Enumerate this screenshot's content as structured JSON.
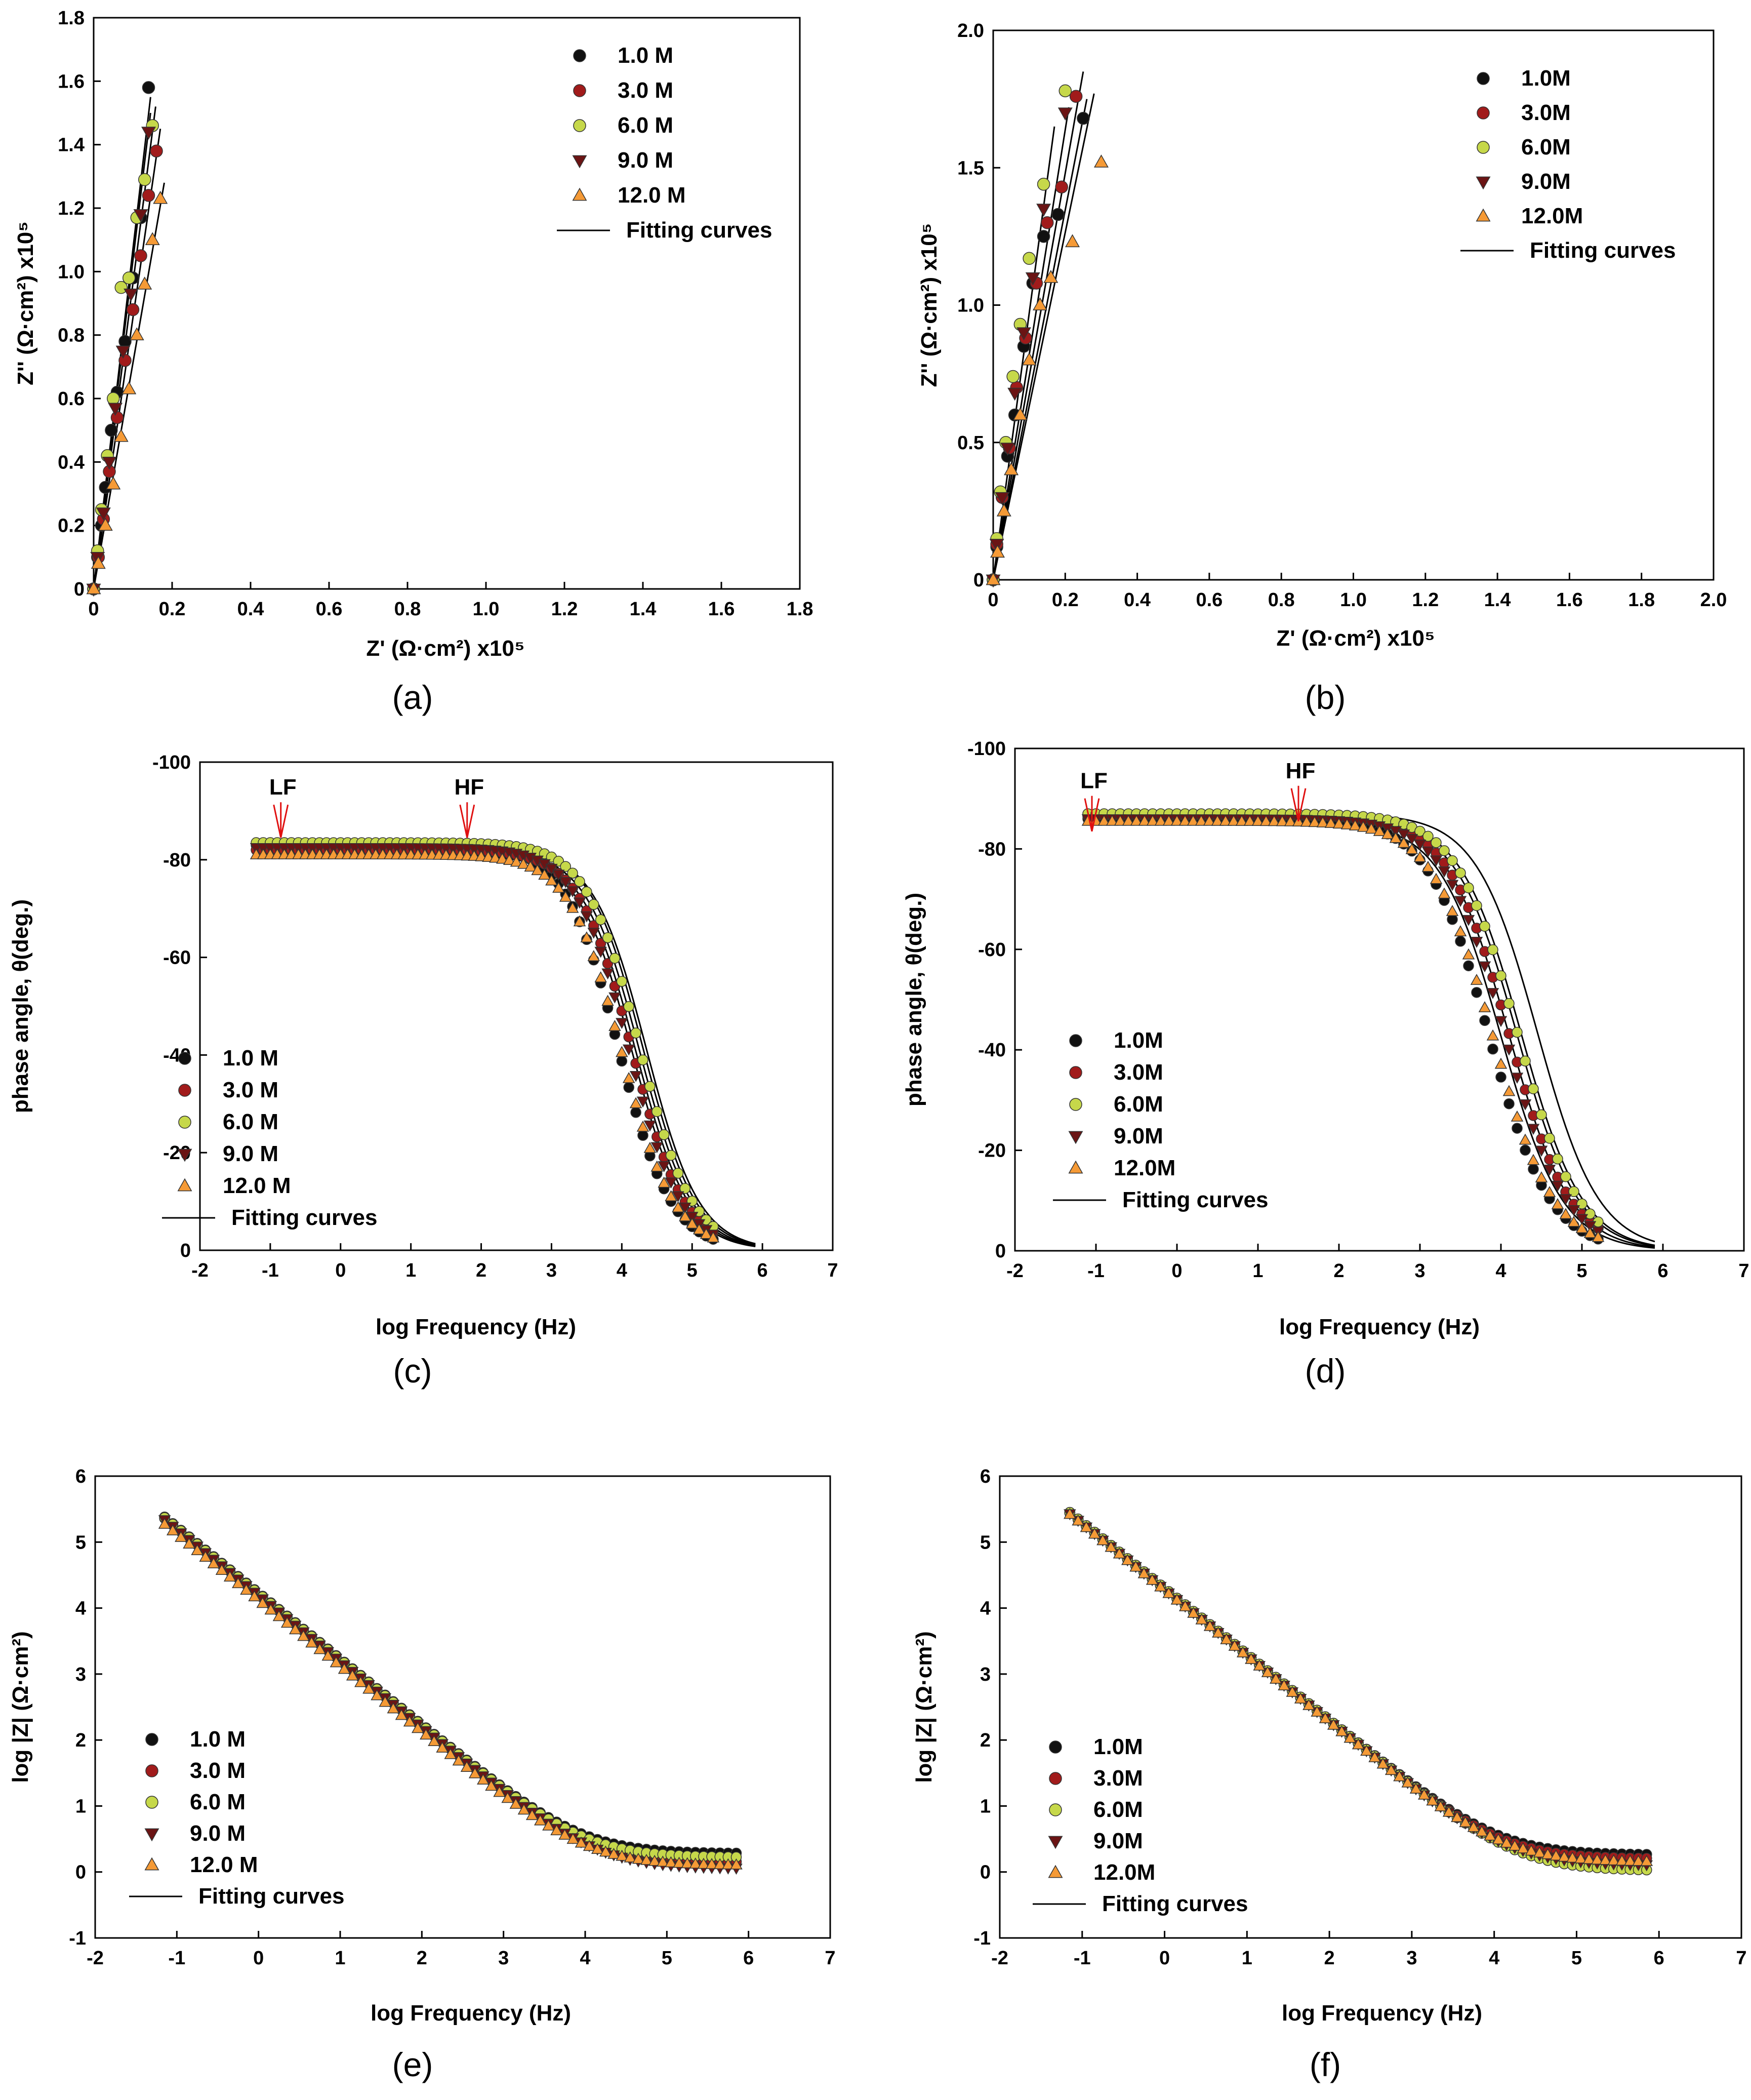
{
  "legend_series": [
    {
      "label": "1.0 M",
      "marker": "circle",
      "color": "#111111"
    },
    {
      "label": "3.0 M",
      "marker": "circle",
      "color": "#a11b1b"
    },
    {
      "label": "6.0 M",
      "marker": "circle",
      "color": "#c6d84a"
    },
    {
      "label": "9.0 M",
      "marker": "triangle-down",
      "color": "#6b1414"
    },
    {
      "label": "12.0 M",
      "marker": "triangle-up",
      "color": "#f59a36"
    }
  ],
  "chart_data": [
    {
      "id": "a",
      "type": "scatter",
      "caption": "(a)",
      "xlabel": "Z' (Ω·cm²) x10⁵",
      "ylabel": "Z'' (Ω·cm²) x10⁵",
      "xlim": [
        0,
        1.8
      ],
      "ylim": [
        0,
        1.8
      ],
      "xticks": [
        "0",
        "0.2",
        "0.4",
        "0.6",
        "0.8",
        "1.0",
        "1.2",
        "1.4",
        "1.6",
        "1.8"
      ],
      "yticks": [
        "0",
        "0.2",
        "0.4",
        "0.6",
        "0.8",
        "1.0",
        "1.2",
        "1.4",
        "1.6",
        "1.8"
      ],
      "legend": [
        "1.0 M",
        "3.0 M",
        "6.0 M",
        "9.0 M",
        "12.0 M",
        "Fitting curves"
      ],
      "series": [
        {
          "name": "1.0 M",
          "x": [
            0.0,
            0.01,
            0.02,
            0.03,
            0.045,
            0.06,
            0.08,
            0.1,
            0.12,
            0.14
          ],
          "y": [
            0.0,
            0.1,
            0.2,
            0.32,
            0.5,
            0.62,
            0.78,
            0.98,
            1.17,
            1.58
          ]
        },
        {
          "name": "3.0 M",
          "x": [
            0.0,
            0.012,
            0.025,
            0.04,
            0.06,
            0.08,
            0.1,
            0.12,
            0.14,
            0.16
          ],
          "y": [
            0.0,
            0.1,
            0.22,
            0.37,
            0.54,
            0.72,
            0.88,
            1.05,
            1.24,
            1.38
          ]
        },
        {
          "name": "6.0 M",
          "x": [
            0.0,
            0.01,
            0.02,
            0.035,
            0.05,
            0.07,
            0.09,
            0.11,
            0.13,
            0.15
          ],
          "y": [
            0.0,
            0.12,
            0.25,
            0.42,
            0.6,
            0.95,
            0.98,
            1.17,
            1.29,
            1.46
          ]
        },
        {
          "name": "9.0 M",
          "x": [
            0.0,
            0.01,
            0.025,
            0.04,
            0.055,
            0.075,
            0.095,
            0.12,
            0.14
          ],
          "y": [
            0.0,
            0.1,
            0.24,
            0.4,
            0.57,
            0.75,
            0.93,
            1.18,
            1.44
          ]
        },
        {
          "name": "12.0 M",
          "x": [
            0.0,
            0.012,
            0.03,
            0.05,
            0.07,
            0.09,
            0.11,
            0.13,
            0.15,
            0.17
          ],
          "y": [
            0.0,
            0.08,
            0.2,
            0.33,
            0.48,
            0.63,
            0.8,
            0.96,
            1.1,
            1.23
          ]
        }
      ],
      "fits": [
        {
          "x": [
            0,
            0.145
          ],
          "y": [
            0,
            1.5
          ]
        },
        {
          "x": [
            0,
            0.17
          ],
          "y": [
            0,
            1.45
          ]
        },
        {
          "x": [
            0,
            0.158
          ],
          "y": [
            0,
            1.52
          ]
        },
        {
          "x": [
            0,
            0.145
          ],
          "y": [
            0,
            1.55
          ]
        },
        {
          "x": [
            0,
            0.18
          ],
          "y": [
            0,
            1.28
          ]
        }
      ]
    },
    {
      "id": "b",
      "type": "scatter",
      "caption": "(b)",
      "xlabel": "Z' (Ω·cm²) x10⁵",
      "ylabel": "Z'' (Ω·cm²) x10⁵",
      "xlim": [
        0,
        2.0
      ],
      "ylim": [
        0,
        2.0
      ],
      "xticks": [
        "0",
        "0.2",
        "0.4",
        "0.6",
        "0.8",
        "1.0",
        "1.2",
        "1.4",
        "1.6",
        "1.8",
        "2.0"
      ],
      "yticks": [
        "0",
        "0.5",
        "1.0",
        "1.5",
        "2.0"
      ],
      "legend": [
        "1.0M",
        "3.0M",
        "6.0M",
        "9.0M",
        "12.0M",
        "Fitting curves"
      ],
      "series": [
        {
          "name": "1.0M",
          "x": [
            0.0,
            0.01,
            0.025,
            0.04,
            0.06,
            0.085,
            0.11,
            0.14,
            0.18,
            0.25
          ],
          "y": [
            0.0,
            0.12,
            0.3,
            0.45,
            0.6,
            0.85,
            1.08,
            1.25,
            1.33,
            1.68
          ]
        },
        {
          "name": "3.0M",
          "x": [
            0.0,
            0.01,
            0.025,
            0.045,
            0.065,
            0.09,
            0.12,
            0.15,
            0.19,
            0.23
          ],
          "y": [
            0.0,
            0.13,
            0.3,
            0.48,
            0.7,
            0.88,
            1.08,
            1.3,
            1.43,
            1.76
          ]
        },
        {
          "name": "6.0M",
          "x": [
            0.0,
            0.01,
            0.02,
            0.035,
            0.055,
            0.075,
            0.1,
            0.14,
            0.2
          ],
          "y": [
            0.0,
            0.15,
            0.32,
            0.5,
            0.74,
            0.93,
            1.17,
            1.44,
            1.78
          ]
        },
        {
          "name": "9.0M",
          "x": [
            0.0,
            0.01,
            0.025,
            0.04,
            0.06,
            0.085,
            0.11,
            0.14,
            0.2
          ],
          "y": [
            0.0,
            0.13,
            0.3,
            0.48,
            0.68,
            0.9,
            1.1,
            1.35,
            1.7
          ]
        },
        {
          "name": "12.0M",
          "x": [
            0.0,
            0.012,
            0.03,
            0.05,
            0.075,
            0.1,
            0.13,
            0.16,
            0.22,
            0.3
          ],
          "y": [
            0.0,
            0.1,
            0.25,
            0.4,
            0.6,
            0.8,
            1.0,
            1.1,
            1.23,
            1.52
          ]
        }
      ],
      "fits": [
        {
          "x": [
            0,
            0.26
          ],
          "y": [
            0,
            1.75
          ]
        },
        {
          "x": [
            0,
            0.25
          ],
          "y": [
            0,
            1.85
          ]
        },
        {
          "x": [
            0,
            0.17
          ],
          "y": [
            0,
            1.65
          ]
        },
        {
          "x": [
            0,
            0.21
          ],
          "y": [
            0,
            1.72
          ]
        },
        {
          "x": [
            0,
            0.28
          ],
          "y": [
            0,
            1.77
          ]
        }
      ]
    },
    {
      "id": "c",
      "type": "scatter",
      "caption": "(c)",
      "xlabel": "log Frequency (Hz)",
      "ylabel": "phase angle, θ(deg.)",
      "xlim": [
        -2,
        7
      ],
      "ylim": [
        0,
        -100
      ],
      "xticks": [
        "-2",
        "-1",
        "0",
        "1",
        "2",
        "3",
        "4",
        "5",
        "6",
        "7"
      ],
      "yticks": [
        "0",
        "-20",
        "-40",
        "-60",
        "-80",
        "-100"
      ],
      "legend": [
        "1.0 M",
        "3.0 M",
        "6.0 M",
        "9.0 M",
        "12.0 M",
        "Fitting curves"
      ],
      "annotations": [
        {
          "label": "LF",
          "x": -0.85,
          "y": -84
        },
        {
          "label": "HF",
          "x": 1.8,
          "y": -84
        }
      ],
      "phase_model": {
        "plateau": [
          -83,
          -82,
          -83.5,
          -82.5,
          -81
        ],
        "fc": [
          3.95,
          4.15,
          4.25,
          4.1,
          4.0
        ]
      },
      "fit_model": {
        "plateau": [
          -82,
          -83,
          -82.5,
          -81.5,
          -81
        ],
        "fc": [
          4.25,
          4.3,
          4.35,
          4.2,
          4.15
        ]
      },
      "x_range": [
        -1.2,
        5.3
      ],
      "fit_range": [
        -1.1,
        5.9
      ]
    },
    {
      "id": "d",
      "type": "scatter",
      "caption": "(d)",
      "xlabel": "log Frequency (Hz)",
      "ylabel": "phase angle, θ(deg.)",
      "xlim": [
        -2,
        7
      ],
      "ylim": [
        0,
        -100
      ],
      "xticks": [
        "-2",
        "-1",
        "0",
        "1",
        "2",
        "3",
        "4",
        "5",
        "6",
        "7"
      ],
      "yticks": [
        "0",
        "-20",
        "-40",
        "-60",
        "-80",
        "-100"
      ],
      "legend": [
        "1.0M",
        "3.0M",
        "6.0M",
        "9.0M",
        "12.0M",
        "Fitting curves"
      ],
      "annotations": [
        {
          "label": "LF",
          "x": -1.05,
          "y": -83
        },
        {
          "label": "HF",
          "x": 1.5,
          "y": -85
        }
      ],
      "phase_model": {
        "plateau": [
          -86,
          -86.5,
          -87,
          -86,
          -85.5
        ],
        "fc": [
          3.85,
          4.1,
          4.2,
          4.05,
          3.9
        ]
      },
      "fit_model": {
        "plateau": [
          -86,
          -86.5,
          -87,
          -86,
          -85.5
        ],
        "fc": [
          4.1,
          4.25,
          4.45,
          4.2,
          4.0
        ]
      },
      "x_range": [
        -1.1,
        5.2
      ],
      "fit_range": [
        -1.1,
        5.9
      ]
    },
    {
      "id": "e",
      "type": "scatter",
      "caption": "(e)",
      "xlabel": "log Frequency (Hz)",
      "ylabel": "log |Z| (Ω·cm²)",
      "xlim": [
        -2,
        7
      ],
      "ylim": [
        -1,
        6
      ],
      "xticks": [
        "-2",
        "-1",
        "0",
        "1",
        "2",
        "3",
        "4",
        "5",
        "6",
        "7"
      ],
      "yticks": [
        "-1",
        "0",
        "1",
        "2",
        "3",
        "4",
        "5",
        "6"
      ],
      "legend": [
        "1.0 M",
        "3.0 M",
        "6.0 M",
        "9.0 M",
        "12.0 M",
        "Fitting curves"
      ],
      "impedance_model": {
        "rs": [
          0.28,
          0.15,
          0.22,
          0.05,
          0.1
        ],
        "offset": [
          4.23,
          4.21,
          4.22,
          4.19,
          4.12
        ]
      },
      "x_range": [
        -1.15,
        5.9
      ]
    },
    {
      "id": "f",
      "type": "scatter",
      "caption": "(f)",
      "xlabel": "log Frequency (Hz)",
      "ylabel": "log |Z| (Ω·cm²)",
      "xlim": [
        -2,
        7
      ],
      "ylim": [
        -1,
        6
      ],
      "xticks": [
        "-2",
        "-1",
        "0",
        "1",
        "2",
        "3",
        "4",
        "5",
        "6",
        "7"
      ],
      "yticks": [
        "-1",
        "0",
        "1",
        "2",
        "3",
        "4",
        "5",
        "6"
      ],
      "legend": [
        "1.0M",
        "3.0M",
        "6.0M",
        "9.0M",
        "12.0M",
        "Fitting curves"
      ],
      "impedance_model": {
        "rs": [
          0.26,
          0.2,
          0.02,
          0.1,
          0.15
        ],
        "offset": [
          4.3,
          4.29,
          4.3,
          4.28,
          4.27
        ]
      },
      "x_range": [
        -1.15,
        5.9
      ]
    }
  ]
}
